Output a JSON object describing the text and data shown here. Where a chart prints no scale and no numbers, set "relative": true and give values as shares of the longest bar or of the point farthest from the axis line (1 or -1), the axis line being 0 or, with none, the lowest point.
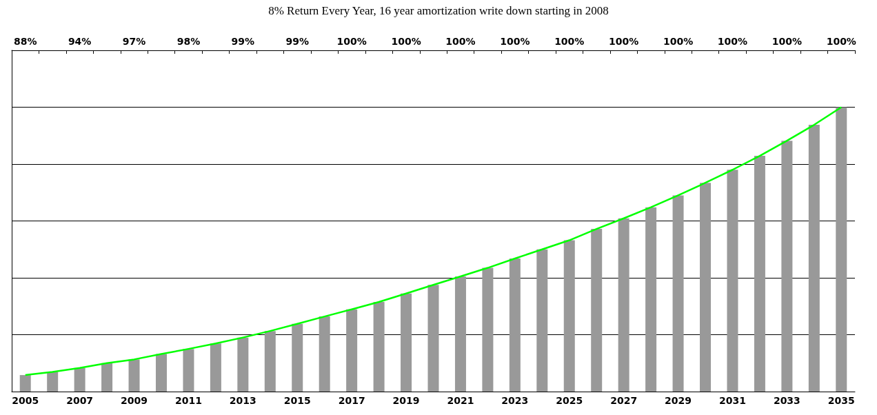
{
  "chart_data": {
    "type": "bar",
    "title": "8% Return Every Year, 16 year amortization write down starting in 2008",
    "relative": true,
    "categories": [
      "2005",
      null,
      "2007",
      null,
      "2009",
      null,
      "2011",
      null,
      "2013",
      null,
      "2015",
      null,
      "2017",
      null,
      "2019",
      null,
      "2021",
      null,
      "2023",
      null,
      "2025",
      null,
      "2027",
      null,
      "2029",
      null,
      "2031",
      null,
      "2033",
      null,
      "2035"
    ],
    "annotations": [
      "88%",
      "94%",
      "97%",
      "98%",
      "99%",
      "99%",
      "100%",
      "100%",
      "100%",
      "100%",
      "100%",
      "100%",
      "100%",
      "100%",
      "100%",
      "100%"
    ],
    "series": [
      {
        "color": "#999999",
        "values": [
          0.058,
          0.069,
          0.083,
          0.1,
          0.113,
          0.132,
          0.15,
          0.169,
          0.19,
          0.213,
          0.238,
          0.264,
          0.289,
          0.315,
          0.345,
          0.375,
          0.405,
          0.435,
          0.468,
          0.5,
          0.532,
          0.572,
          0.609,
          0.648,
          0.69,
          0.734,
          0.78,
          0.829,
          0.882,
          0.938,
          1
        ]
      },
      {
        "type": "line",
        "color": "#00ff00",
        "values": [
          0.058,
          0.069,
          0.083,
          0.1,
          0.113,
          0.132,
          0.15,
          0.169,
          0.19,
          0.213,
          0.238,
          0.264,
          0.289,
          0.315,
          0.345,
          0.375,
          0.405,
          0.435,
          0.468,
          0.5,
          0.532,
          0.572,
          0.609,
          0.648,
          0.69,
          0.734,
          0.78,
          0.829,
          0.882,
          0.938,
          1
        ]
      }
    ],
    "grid": "y",
    "marker": "none",
    "line_style": "solid"
  }
}
